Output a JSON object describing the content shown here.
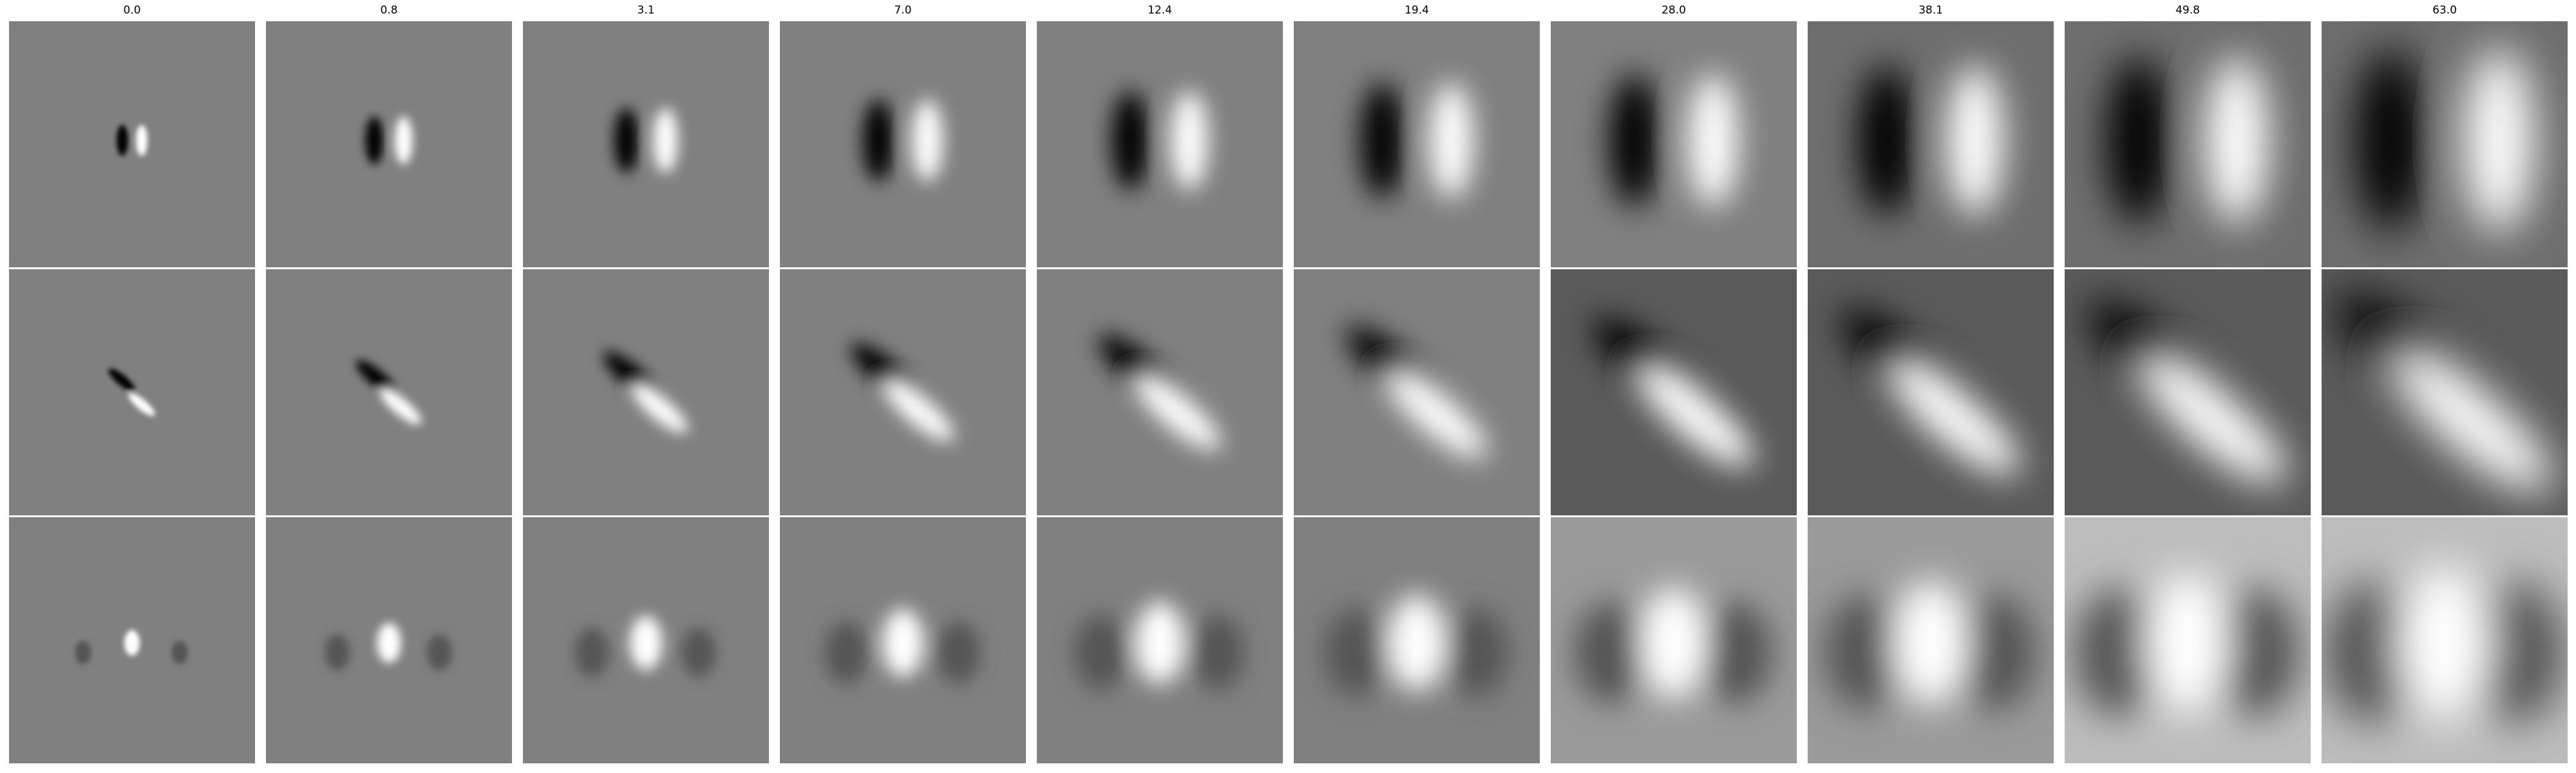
{
  "figure": {
    "column_titles": [
      "0.0",
      "0.8",
      "3.1",
      "7.0",
      "12.4",
      "19.4",
      "28.0",
      "38.1",
      "49.8",
      "63.0"
    ],
    "row_count": 3,
    "colormap": "grayscale",
    "colors": {
      "background": "#ffffff",
      "panel_mid_gray": "#808080",
      "black": "#000000",
      "white": "#ffffff"
    }
  }
}
